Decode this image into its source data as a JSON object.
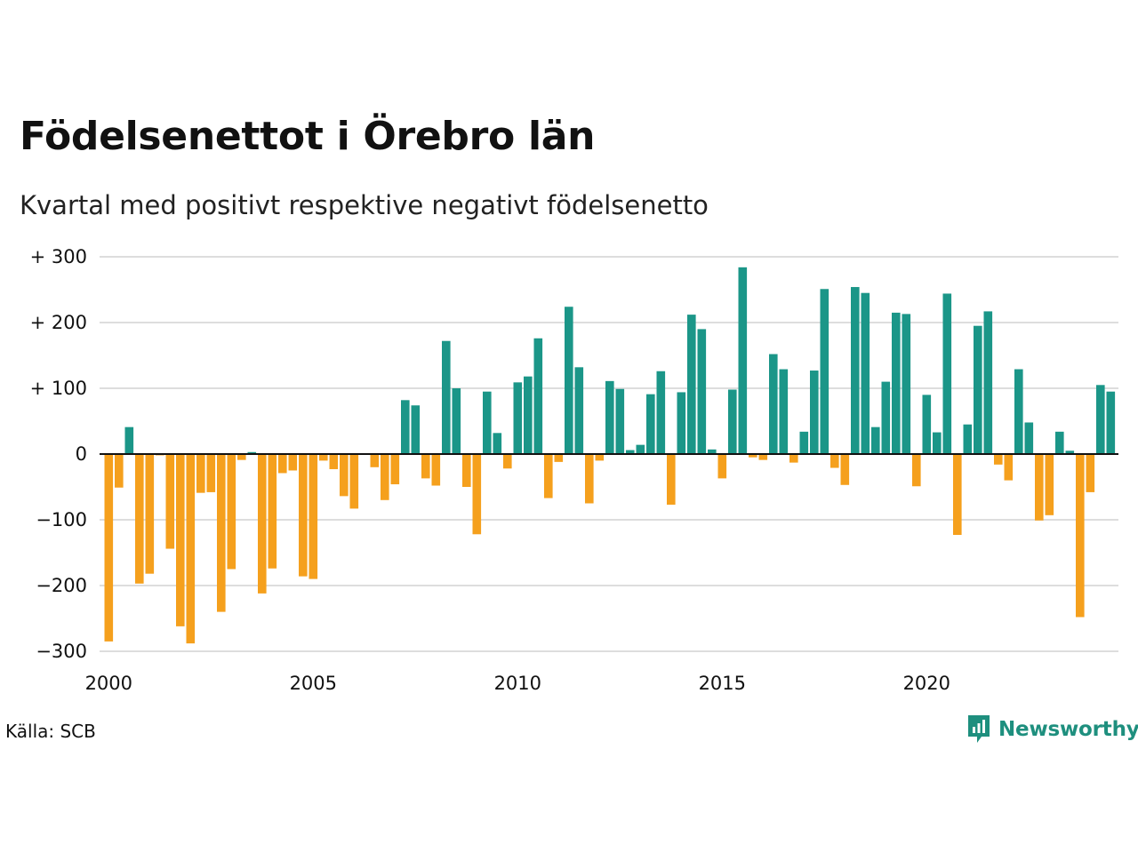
{
  "title": "Födelsenettot i Örebro län",
  "subtitle": "Kvartal med positivt respektive negativt födelsenetto",
  "source": "Källa: SCB",
  "brand": "Newsworthy",
  "colors": {
    "positive": "#1b9688",
    "negative": "#f5a01d",
    "grid": "#dddddd",
    "brand": "#1e8f7e"
  },
  "chart_data": {
    "type": "bar",
    "title": "Födelsenettot i Örebro län",
    "subtitle": "Kvartal med positivt respektive negativt födelsenetto",
    "x_ticks": [
      "2000",
      "2005",
      "2010",
      "2015",
      "2020"
    ],
    "y_ticks": [
      {
        "value": 300,
        "label": "+ 300"
      },
      {
        "value": 200,
        "label": "+ 200"
      },
      {
        "value": 100,
        "label": "+ 100"
      },
      {
        "value": 0,
        "label": "0"
      },
      {
        "value": -100,
        "label": "−100"
      },
      {
        "value": -200,
        "label": "−200"
      },
      {
        "value": -300,
        "label": "−300"
      }
    ],
    "ylim": [
      -300,
      300
    ],
    "grid": true,
    "start": "2000 Q1",
    "frequency": "quarterly",
    "values": [
      -285,
      -51,
      41,
      -197,
      -182,
      -2,
      -144,
      -262,
      -288,
      -59,
      -58,
      -240,
      -175,
      -9,
      3,
      -212,
      -174,
      -29,
      -25,
      -186,
      -190,
      -10,
      -23,
      -64,
      -83,
      0,
      -20,
      -70,
      -46,
      82,
      74,
      -37,
      -48,
      172,
      100,
      -50,
      -122,
      95,
      32,
      -22,
      109,
      118,
      176,
      -67,
      -12,
      224,
      132,
      -75,
      -10,
      111,
      99,
      6,
      14,
      91,
      126,
      -77,
      94,
      212,
      190,
      7,
      -37,
      98,
      284,
      -5,
      -9,
      152,
      129,
      -13,
      34,
      127,
      251,
      -21,
      -47,
      254,
      245,
      41,
      110,
      215,
      213,
      -49,
      90,
      33,
      244,
      -123,
      45,
      195,
      217,
      -16,
      -40,
      129,
      48,
      -101,
      -93,
      34,
      5,
      -248,
      -58,
      105,
      95
    ]
  }
}
